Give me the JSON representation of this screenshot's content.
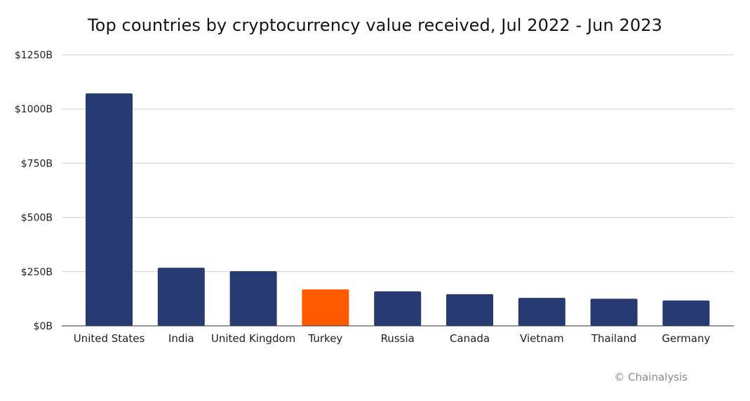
{
  "title": "Top countries by cryptocurrency value received, Jul 2022 - Jun 2023",
  "credit": "© Chainalysis",
  "colors": {
    "bar": "#283a72",
    "highlight": "#ff5a00",
    "grid": "#cfcfcf",
    "axis": "#333333"
  },
  "chart_data": {
    "type": "bar",
    "categories": [
      "United States",
      "India",
      "United Kingdom",
      "Turkey",
      "Russia",
      "Canada",
      "Vietnam",
      "Thailand",
      "Germany"
    ],
    "values": [
      1072,
      268,
      252,
      168,
      159,
      146,
      129,
      125,
      117
    ],
    "highlight_category": "Turkey",
    "ylim": [
      0,
      1250
    ],
    "yticks": [
      0,
      250,
      500,
      750,
      1000,
      1250
    ],
    "ytick_labels": [
      "$0B",
      "$250B",
      "$500B",
      "$750B",
      "$1000B",
      "$1250B"
    ],
    "xlabel": "",
    "ylabel": "",
    "grid": true
  }
}
